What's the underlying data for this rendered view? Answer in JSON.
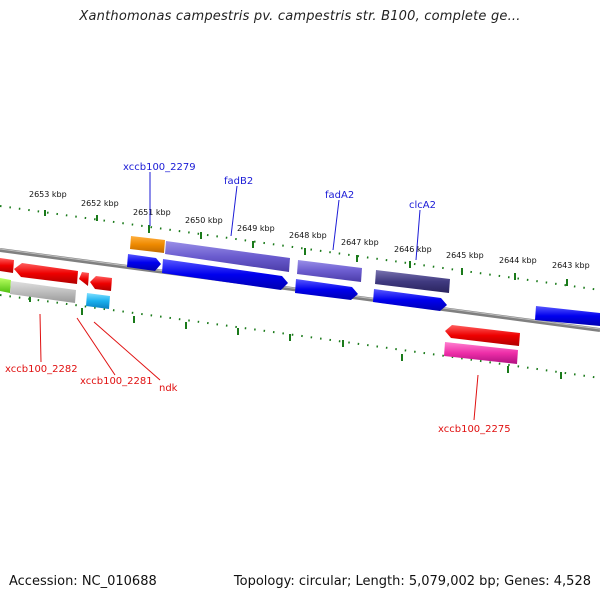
{
  "title": "Xanthomonas campestris pv. campestris str. B100, complete ge...",
  "footer": {
    "accession": "Accession: NC_010688",
    "summary": "Topology: circular; Length: 5,079,002 bp; Genes: 4,528"
  },
  "kbp_labels": [
    "2653 kbp",
    "2652 kbp",
    "2651 kbp",
    "2650 kbp",
    "2649 kbp",
    "2648 kbp",
    "2647 kbp",
    "2646 kbp",
    "2645 kbp",
    "2644 kbp",
    "2643 kbp"
  ],
  "gene_labels_top": [
    "xccb100_2279",
    "fadB2",
    "fadA2",
    "clcA2"
  ],
  "gene_labels_bottom": [
    "xccb100_2282",
    "xccb100_2281",
    "ndk",
    "xccb100_2275"
  ],
  "colors": {
    "backbone": "#777777",
    "ticks": "#1a7a1a",
    "top_label": "#1a1ad6",
    "bottom_label": "#e01010"
  }
}
